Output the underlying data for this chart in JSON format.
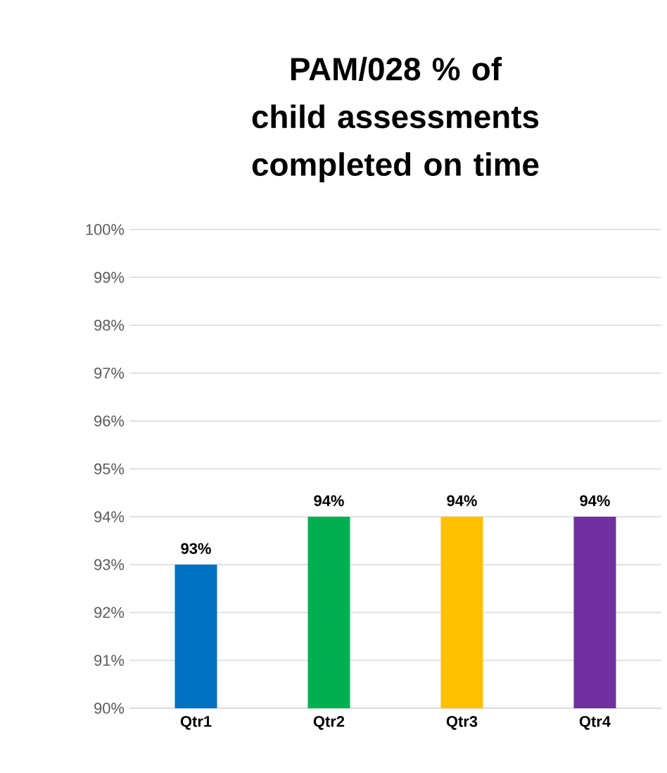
{
  "chart_data": {
    "type": "bar",
    "title": "PAM/028 % of child assessments completed on time",
    "categories": [
      "Qtr1",
      "Qtr2",
      "Qtr3",
      "Qtr4"
    ],
    "values": [
      93,
      94,
      94,
      94
    ],
    "colors": [
      "#0070c0",
      "#00b050",
      "#ffc000",
      "#7030a0"
    ],
    "value_labels": [
      "93%",
      "94%",
      "94%",
      "94%"
    ],
    "ylim": [
      90,
      100
    ],
    "yticks": [
      {
        "value": 90,
        "label": "90%"
      },
      {
        "value": 91,
        "label": "91%"
      },
      {
        "value": 92,
        "label": "92%"
      },
      {
        "value": 93,
        "label": "93%"
      },
      {
        "value": 94,
        "label": "94%"
      },
      {
        "value": 95,
        "label": "95%"
      },
      {
        "value": 96,
        "label": "96%"
      },
      {
        "value": 97,
        "label": "97%"
      },
      {
        "value": 98,
        "label": "98%"
      },
      {
        "value": 99,
        "label": "99%"
      },
      {
        "value": 100,
        "label": "100%"
      }
    ],
    "grid": "y"
  }
}
